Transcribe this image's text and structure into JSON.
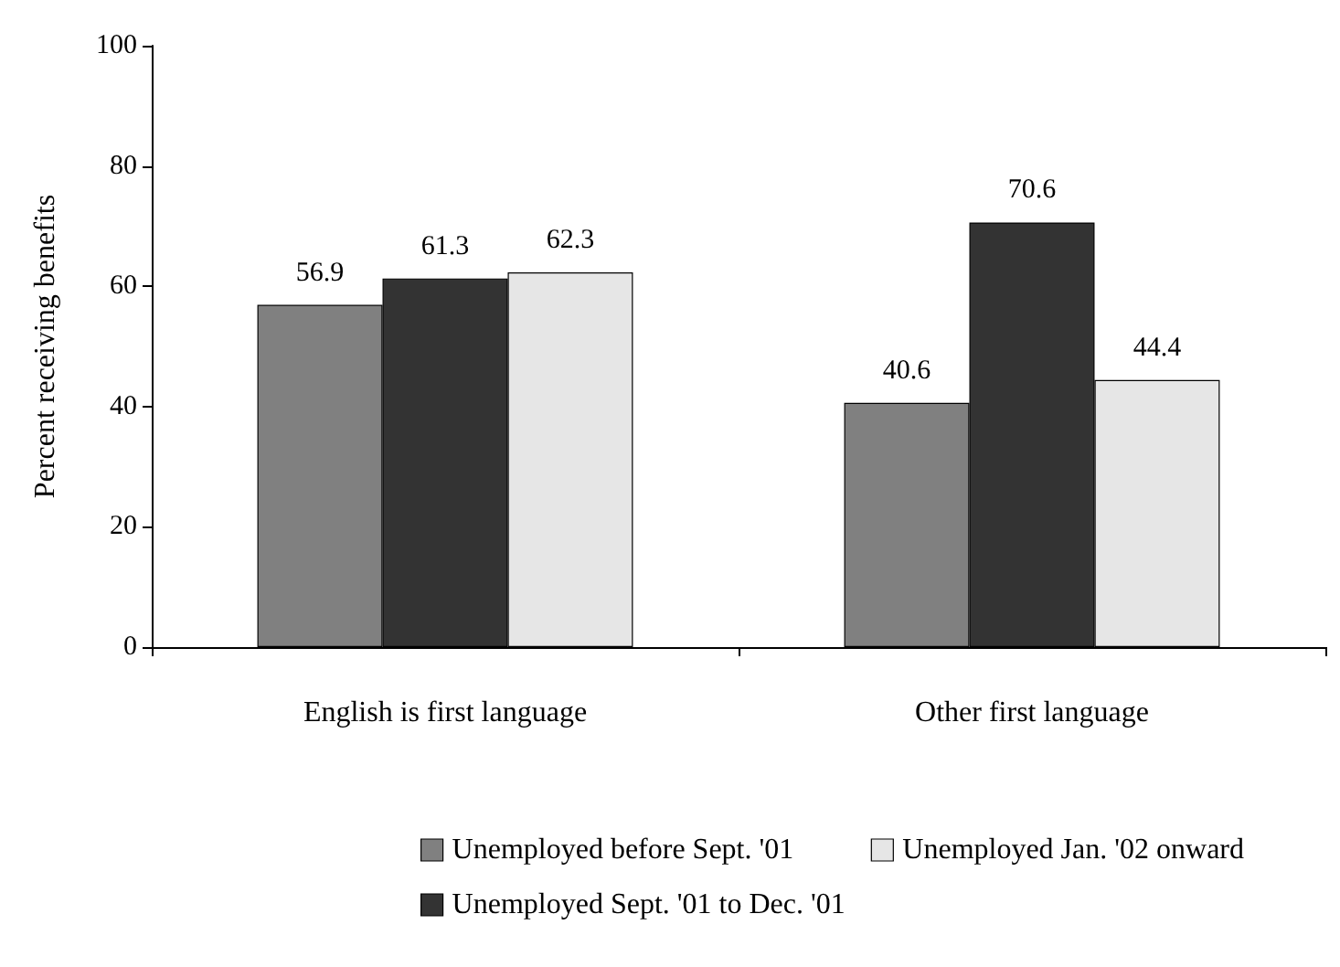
{
  "chart_data": {
    "type": "bar",
    "ylabel": "Percent receiving benefits",
    "categories": [
      "English is first language",
      "Other first language"
    ],
    "series": [
      {
        "name": "Unemployed before Sept. '01",
        "color": "#808080",
        "values": [
          56.9,
          40.6
        ]
      },
      {
        "name": "Unemployed Sept. '01 to Dec. '01",
        "color": "#333333",
        "values": [
          61.3,
          70.6
        ]
      },
      {
        "name": "Unemployed Jan. '02 onward",
        "color": "#e6e6e6",
        "values": [
          62.3,
          44.4
        ]
      }
    ],
    "ylim": [
      0,
      100
    ],
    "yticks": [
      0,
      20,
      40,
      60,
      80,
      100
    ],
    "grid": false,
    "legend": "bottom",
    "data_labels": true
  }
}
